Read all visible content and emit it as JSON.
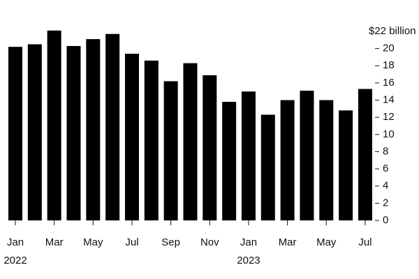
{
  "chart_data": {
    "type": "bar",
    "categories": [
      "Jan",
      null,
      "Mar",
      null,
      "May",
      null,
      "Jul",
      null,
      "Sep",
      null,
      "Nov",
      null,
      "Jan",
      null,
      "Mar",
      null,
      "May",
      null,
      "Jul"
    ],
    "x_sublabels": [
      "2022",
      null,
      null,
      null,
      null,
      null,
      null,
      null,
      null,
      null,
      null,
      null,
      "2023",
      null,
      null,
      null,
      null,
      null,
      null
    ],
    "values": [
      20.2,
      20.5,
      22.1,
      20.3,
      21.1,
      21.7,
      19.4,
      18.6,
      16.2,
      18.3,
      16.9,
      13.8,
      15.0,
      12.3,
      14.0,
      15.1,
      14.0,
      12.8,
      15.3
    ],
    "color": "#000000",
    "ylim": [
      0,
      22
    ],
    "yticks": [
      0,
      2,
      4,
      6,
      8,
      10,
      12,
      14,
      16,
      18,
      20,
      {
        "value": 22,
        "label": "$22 billion"
      }
    ]
  }
}
